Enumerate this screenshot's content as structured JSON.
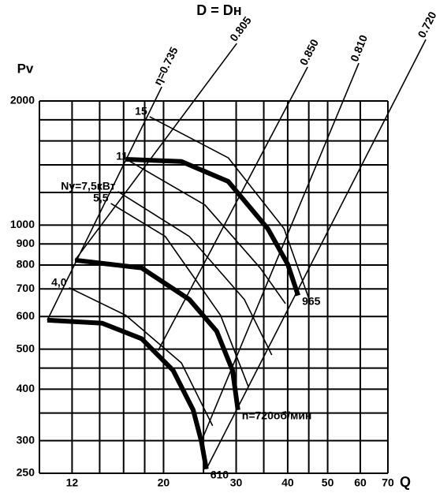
{
  "chart_data": {
    "type": "line",
    "title": "D = Dн",
    "ylabel": "Pv",
    "xlabel": "Q",
    "log_x": true,
    "log_y": true,
    "color": "#000000",
    "xlim": [
      10,
      70
    ],
    "ylim": [
      250,
      2000
    ],
    "xticks": [
      12,
      20,
      30,
      40,
      50,
      60,
      70
    ],
    "yticks": [
      250,
      300,
      400,
      500,
      600,
      700,
      800,
      900,
      1000,
      2000
    ],
    "x_grid": [
      10,
      12,
      14,
      16,
      18,
      20,
      25,
      30,
      35,
      40,
      45,
      50,
      60,
      70
    ],
    "y_grid": [
      250,
      300,
      350,
      400,
      450,
      500,
      600,
      700,
      800,
      900,
      1000,
      1200,
      1400,
      1600,
      1800,
      2000
    ],
    "series": [
      {
        "name": "610",
        "x": [
          10.45,
          14.2,
          17.7,
          21.1,
          23.6,
          24.7,
          25.4
        ],
        "values": [
          588,
          578,
          530,
          444,
          356,
          299,
          256
        ]
      },
      {
        "name": "n=720об/мин",
        "x": [
          12.2,
          17.7,
          23.1,
          26.9,
          29.4,
          30.3
        ],
        "values": [
          822,
          787,
          660,
          553,
          444,
          356
        ]
      },
      {
        "name": "965",
        "x": [
          16.2,
          22.1,
          28.7,
          35.8,
          40.0,
          42.4
        ],
        "values": [
          1444,
          1426,
          1276,
          980,
          804,
          675
        ]
      }
    ],
    "power_series": [
      {
        "name": "15",
        "x": [
          18.5,
          28.7,
          39.2,
          45.1
        ],
        "values": [
          1832,
          1456,
          980,
          660
        ]
      },
      {
        "name": "11",
        "x": [
          16.6,
          25.2,
          34.3,
          39.5
        ],
        "values": [
          1426,
          1119,
          787,
          645
        ]
      },
      {
        "name": "Ny=7,5кВт",
        "x": [
          15.5,
          23.1,
          31.4,
          36.6
        ],
        "values": [
          1206,
          938,
          660,
          484
        ]
      },
      {
        "name": "5,5",
        "x": [
          14.9,
          20.2,
          27.5,
          32.1
        ],
        "values": [
          1128,
          938,
          604,
          406
        ]
      },
      {
        "name": "4,0",
        "x": [
          11.8,
          16.2,
          22.1,
          26.3
        ],
        "values": [
          705,
          604,
          463,
          326
        ]
      }
    ],
    "efficiency_series": [
      {
        "name": "η=0.735",
        "x": [
          10.45,
          19.8
        ],
        "values": [
          588,
          2164
        ]
      },
      {
        "name": "0.805",
        "x": [
          12.2,
          30.1
        ],
        "values": [
          822,
          2758
        ]
      },
      {
        "name": "0.850",
        "x": [
          19.4,
          44.7
        ],
        "values": [
          496,
          2417
        ]
      },
      {
        "name": "0.810",
        "x": [
          24.7,
          59.5
        ],
        "values": [
          299,
          2470
        ]
      },
      {
        "name": "0.720",
        "x": [
          25.4,
          86.5
        ],
        "values": [
          256,
          2818
        ]
      }
    ]
  }
}
